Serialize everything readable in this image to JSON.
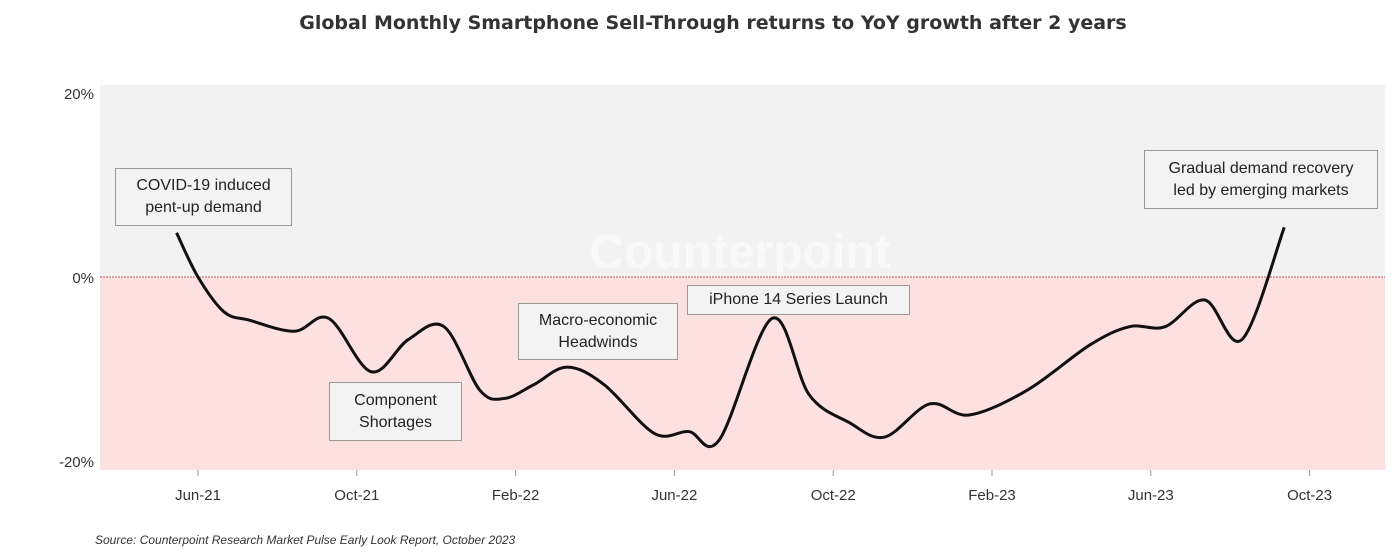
{
  "chart_data": {
    "type": "line",
    "title": "Global Monthly Smartphone Sell-Through returns to YoY growth after 2 years",
    "xlabel": "",
    "ylabel": "",
    "ylim": [
      -20,
      20
    ],
    "y_ticks": [
      {
        "value": 20,
        "label": "20%"
      },
      {
        "value": 0,
        "label": "0%"
      },
      {
        "value": -20,
        "label": "-20%"
      }
    ],
    "x_ticks": [
      {
        "date": "2021-06-01",
        "label": "Jun-21"
      },
      {
        "date": "2021-10-01",
        "label": "Oct-21"
      },
      {
        "date": "2022-02-01",
        "label": "Feb-22"
      },
      {
        "date": "2022-06-01",
        "label": "Jun-22"
      },
      {
        "date": "2022-10-01",
        "label": "Oct-22"
      },
      {
        "date": "2023-02-01",
        "label": "Feb-23"
      },
      {
        "date": "2023-06-01",
        "label": "Jun-23"
      },
      {
        "date": "2023-10-01",
        "label": "Oct-23"
      }
    ],
    "grid": false,
    "regions": [
      {
        "from": 0,
        "to": 20,
        "color": "#f2f2f2"
      },
      {
        "from": -20,
        "to": 0,
        "color": "#fde0e0"
      }
    ],
    "zero_line_color": "#b06060",
    "line_color": "#111111",
    "points": [
      [
        "2021-05-15",
        4.8
      ],
      [
        "2021-06-01",
        0
      ],
      [
        "2021-06-21",
        -3.8
      ],
      [
        "2021-07-10",
        -4.7
      ],
      [
        "2021-08-14",
        -5.9
      ],
      [
        "2021-09-10",
        -4.5
      ],
      [
        "2021-10-12",
        -10.3
      ],
      [
        "2021-11-10",
        -6.8
      ],
      [
        "2021-12-07",
        -5.4
      ],
      [
        "2022-01-04",
        -12.3
      ],
      [
        "2022-01-23",
        -13.2
      ],
      [
        "2022-02-15",
        -11.7
      ],
      [
        "2022-03-10",
        -9.8
      ],
      [
        "2022-04-08",
        -11.7
      ],
      [
        "2022-05-16",
        -17.0
      ],
      [
        "2022-06-12",
        -16.8
      ],
      [
        "2022-07-05",
        -17.7
      ],
      [
        "2022-08-15",
        -4.5
      ],
      [
        "2022-09-13",
        -12.8
      ],
      [
        "2022-10-13",
        -15.8
      ],
      [
        "2022-11-10",
        -17.4
      ],
      [
        "2022-12-14",
        -13.8
      ],
      [
        "2023-01-14",
        -15.0
      ],
      [
        "2023-02-28",
        -12.3
      ],
      [
        "2023-04-15",
        -7.4
      ],
      [
        "2023-05-15",
        -5.4
      ],
      [
        "2023-06-12",
        -5.4
      ],
      [
        "2023-07-12",
        -2.5
      ],
      [
        "2023-08-10",
        -6.8
      ],
      [
        "2023-09-12",
        5.4
      ]
    ],
    "annotations": [
      {
        "text": "COVID-19 induced\npent-up demand"
      },
      {
        "text": "Component\nShortages"
      },
      {
        "text": "Macro-economic\nHeadwinds"
      },
      {
        "text": "iPhone 14 Series Launch"
      },
      {
        "text": "Gradual demand recovery\nled by emerging markets"
      }
    ],
    "source": "Source: Counterpoint Research Market Pulse Early Look Report, October 2023",
    "watermark": "Counterpoint"
  }
}
